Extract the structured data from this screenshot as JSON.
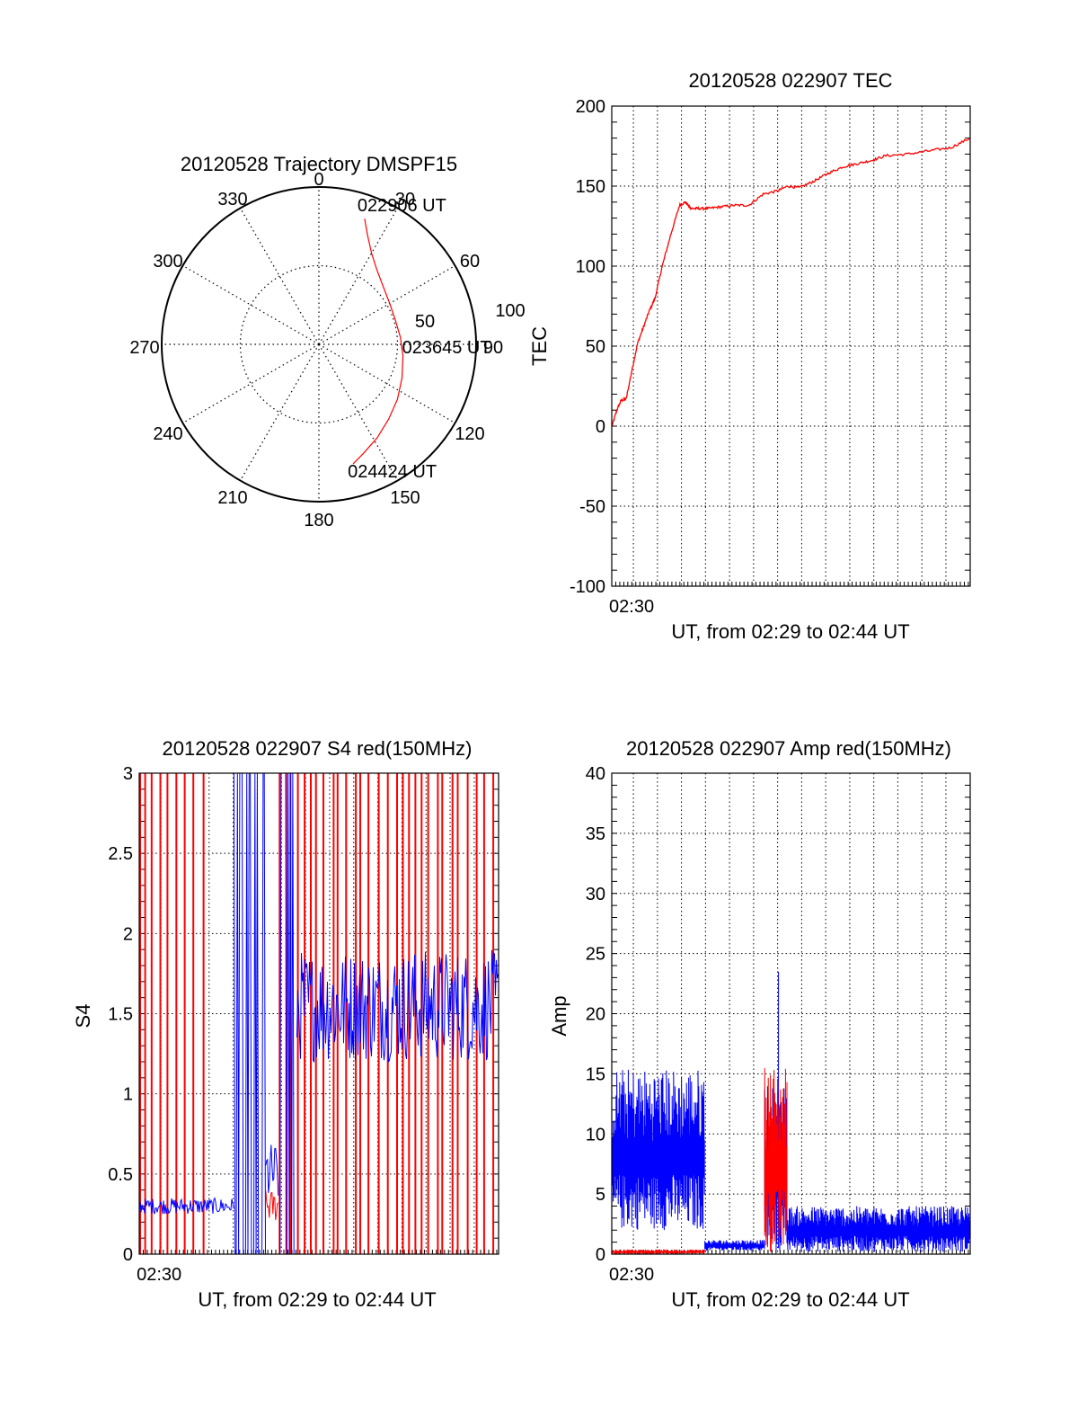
{
  "colors": {
    "red": "#ff0000",
    "blue": "#0000ff",
    "axis": "#000000",
    "background": "#ffffff"
  },
  "chart_data": [
    {
      "type": "scatter",
      "id": "trajectory",
      "title": "20120528 Trajectory DMSPF15",
      "projection": "polar",
      "angle_ticks": [
        "0",
        "30",
        "60",
        "90",
        "120",
        "150",
        "180",
        "210",
        "240",
        "270",
        "300",
        "330"
      ],
      "radius_ticks": [
        "50",
        "100"
      ],
      "rlim": [
        0,
        100
      ],
      "grid": true,
      "series": [
        {
          "color": "#ff0000",
          "points": [
            {
              "az": 20,
              "el": 15
            },
            {
              "az": 24,
              "el": 24
            },
            {
              "az": 30,
              "el": 33
            },
            {
              "az": 38,
              "el": 40
            },
            {
              "az": 48,
              "el": 45
            },
            {
              "az": 60,
              "el": 48
            },
            {
              "az": 72,
              "el": 49
            },
            {
              "az": 85,
              "el": 48
            },
            {
              "az": 98,
              "el": 46
            },
            {
              "az": 112,
              "el": 43
            },
            {
              "az": 125,
              "el": 39
            },
            {
              "az": 137,
              "el": 35
            },
            {
              "az": 148,
              "el": 30
            },
            {
              "az": 158,
              "el": 25
            },
            {
              "az": 164,
              "el": 21
            }
          ]
        }
      ],
      "annotations": [
        {
          "text": "022906 UT",
          "point": "start"
        },
        {
          "text": "023645 UT",
          "point": "middle"
        },
        {
          "text": "024424 UT",
          "point": "end"
        }
      ]
    },
    {
      "type": "line",
      "id": "tec",
      "title": "20120528 022907 TEC",
      "xlabel": "UT, from 02:29 to 02:44 UT",
      "ylabel": "TEC",
      "xlim": [
        2.485,
        2.7335
      ],
      "ylim": [
        -100,
        200
      ],
      "yticks": [
        "-100",
        "-50",
        "0",
        "50",
        "100",
        "150",
        "200"
      ],
      "xtick_labels": [
        "02:30"
      ],
      "xtick_values": [
        2.5
      ],
      "grid": true,
      "series": [
        {
          "color": "#ff0000",
          "x": [
            2.4852,
            2.4885,
            2.4915,
            2.495,
            2.499,
            2.503,
            2.507,
            2.511,
            2.515,
            2.52,
            2.526,
            2.532,
            2.536,
            2.538,
            2.54,
            2.545,
            2.552,
            2.56,
            2.57,
            2.58,
            2.59,
            2.6,
            2.607,
            2.615,
            2.625,
            2.635,
            2.645,
            2.655,
            2.665,
            2.675,
            2.69,
            2.705,
            2.72,
            2.7335
          ],
          "y": [
            0,
            10,
            16,
            17,
            35,
            52,
            62,
            72,
            80,
            100,
            120,
            138,
            140,
            138,
            136,
            136,
            136,
            137,
            138,
            138,
            145,
            147,
            150,
            149,
            153,
            158,
            162,
            164,
            166,
            169,
            170,
            172,
            174,
            180
          ]
        }
      ]
    },
    {
      "type": "line",
      "id": "s4",
      "title": "20120528 022907 S4 red(150MHz)",
      "xlabel": "UT, from 02:29 to 02:44 UT",
      "ylabel": "S4",
      "xlim": [
        2.485,
        2.7335
      ],
      "ylim": [
        0,
        3
      ],
      "yticks": [
        "0",
        "0.5",
        "1",
        "1.5",
        "2",
        "2.5",
        "3"
      ],
      "xtick_labels": [
        "02:30"
      ],
      "xtick_values": [
        2.5
      ],
      "grid": true,
      "segments": [
        {
          "color": "#ff0000",
          "start": 2.485,
          "end": 2.5355,
          "style": "spikes"
        },
        {
          "color": "#0000ff",
          "start": 2.485,
          "end": 2.5505,
          "level": 0.3,
          "noise": 0.05
        },
        {
          "color": "#0000ff",
          "start": 2.5505,
          "end": 2.5725,
          "style": "saturated"
        },
        {
          "color": "#0000ff",
          "start": 2.5725,
          "end": 2.5815,
          "level": 0.5,
          "noise": 0.2
        },
        {
          "color": "#ff0000",
          "start": 2.5725,
          "end": 2.5815,
          "level": 0.3,
          "noise": 0.1
        },
        {
          "color": "#ff0000",
          "start": 2.5815,
          "end": 2.7335,
          "style": "spikes"
        },
        {
          "color": "#0000ff",
          "start": 2.5815,
          "end": 2.594,
          "style": "saturated"
        },
        {
          "color": "#0000ff",
          "start": 2.594,
          "end": 2.7335,
          "level": 1.55,
          "noise": 0.35
        }
      ]
    },
    {
      "type": "line",
      "id": "amp",
      "title": "20120528 022907 Amp red(150MHz)",
      "xlabel": "UT, from 02:29 to 02:44 UT",
      "ylabel": "Amp",
      "xlim": [
        2.485,
        2.7335
      ],
      "ylim": [
        0,
        40
      ],
      "yticks": [
        "0",
        "5",
        "10",
        "15",
        "20",
        "25",
        "30",
        "35",
        "40"
      ],
      "xtick_labels": [
        "02:30"
      ],
      "xtick_values": [
        2.5
      ],
      "grid": true,
      "segments": [
        {
          "color": "#0000ff",
          "start": 2.4855,
          "end": 2.5495,
          "band": [
            2,
            15.5
          ]
        },
        {
          "color": "#ff0000",
          "start": 2.4855,
          "end": 2.5495,
          "band": [
            0,
            0.4
          ]
        },
        {
          "color": "#0000ff",
          "start": 2.5495,
          "end": 2.591,
          "band": [
            0.3,
            1.2
          ]
        },
        {
          "color": "#0000ff",
          "start": 2.591,
          "end": 2.6065,
          "band": [
            0,
            14
          ],
          "peak": 23.5
        },
        {
          "color": "#ff0000",
          "start": 2.591,
          "end": 2.6065,
          "band": [
            0,
            15.8
          ]
        },
        {
          "color": "#0000ff",
          "start": 2.6065,
          "end": 2.7335,
          "band": [
            0.2,
            4
          ]
        }
      ]
    }
  ]
}
